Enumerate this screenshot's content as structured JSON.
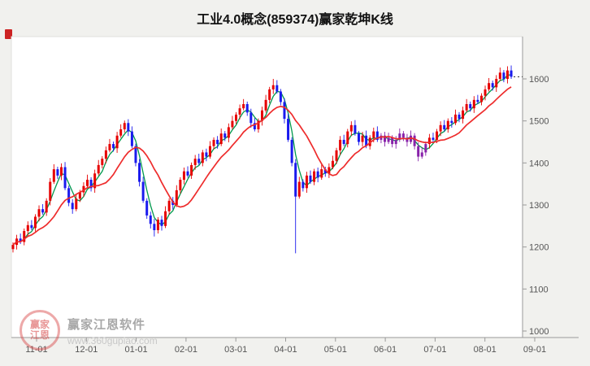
{
  "chart_data": {
    "type": "candlestick",
    "title": "工业4.0概念(859374)赢家乾坤K线",
    "x_ticks": [
      "11-01",
      "12-01",
      "01-01",
      "02-01",
      "03-01",
      "04-01",
      "05-01",
      "06-01",
      "07-01",
      "08-01",
      "09-01"
    ],
    "y_ticks": [
      1000,
      1100,
      1200,
      1300,
      1400,
      1500,
      1600
    ],
    "ylim": [
      1000,
      1700
    ],
    "grid": false,
    "legend_position": "none",
    "closes": [
      1205,
      1220,
      1212,
      1238,
      1252,
      1245,
      1272,
      1290,
      1282,
      1310,
      1355,
      1385,
      1370,
      1390,
      1340,
      1305,
      1290,
      1315,
      1330,
      1345,
      1360,
      1340,
      1375,
      1395,
      1410,
      1430,
      1445,
      1435,
      1465,
      1480,
      1495,
      1475,
      1440,
      1400,
      1355,
      1310,
      1275,
      1255,
      1240,
      1265,
      1250,
      1285,
      1310,
      1300,
      1335,
      1360,
      1380,
      1370,
      1395,
      1410,
      1400,
      1425,
      1415,
      1440,
      1455,
      1445,
      1470,
      1460,
      1485,
      1500,
      1515,
      1530,
      1540,
      1520,
      1495,
      1480,
      1500,
      1525,
      1550,
      1575,
      1585,
      1570,
      1545,
      1505,
      1455,
      1400,
      1320,
      1355,
      1340,
      1370,
      1355,
      1380,
      1365,
      1385,
      1375,
      1390,
      1405,
      1430,
      1455,
      1445,
      1475,
      1490,
      1470,
      1450,
      1465,
      1440,
      1460,
      1475,
      1455,
      1465,
      1450,
      1460,
      1445,
      1455,
      1470,
      1460,
      1450,
      1465,
      1440,
      1415,
      1425,
      1445,
      1460,
      1455,
      1475,
      1490,
      1480,
      1500,
      1495,
      1515,
      1505,
      1525,
      1540,
      1530,
      1550,
      1545,
      1560,
      1575,
      1590,
      1580,
      1600,
      1615,
      1600,
      1620,
      1605
    ],
    "first_open": 1195,
    "wick_overrides": [
      {
        "index": 76,
        "low": 1185
      },
      {
        "index": 70,
        "high": 1600
      },
      {
        "index": 38,
        "low": 1225
      },
      {
        "index": 133,
        "high": 1630
      }
    ],
    "special_color_range": [
      99,
      111
    ],
    "ma_fast_window": 4,
    "ma_slow_window": 12,
    "last_price": 1605
  },
  "watermark": {
    "brand": "赢家江恩软件",
    "url": "www.360gupiao.com",
    "logo_text_top": "赢家",
    "logo_text_bottom": "江恩"
  },
  "colors": {
    "up": "#e60000",
    "down": "#1a1aee",
    "special": "#8822aa",
    "ma_fast": "#00994d",
    "ma_slow": "#ee2c2c",
    "axis": "#9a9a9a",
    "tick_label": "#555555",
    "background": "#f1f1ee",
    "plot_background": "#ffffff",
    "dotted_line": "#222222",
    "title": "#111111",
    "watermark_red": "#d64040"
  }
}
